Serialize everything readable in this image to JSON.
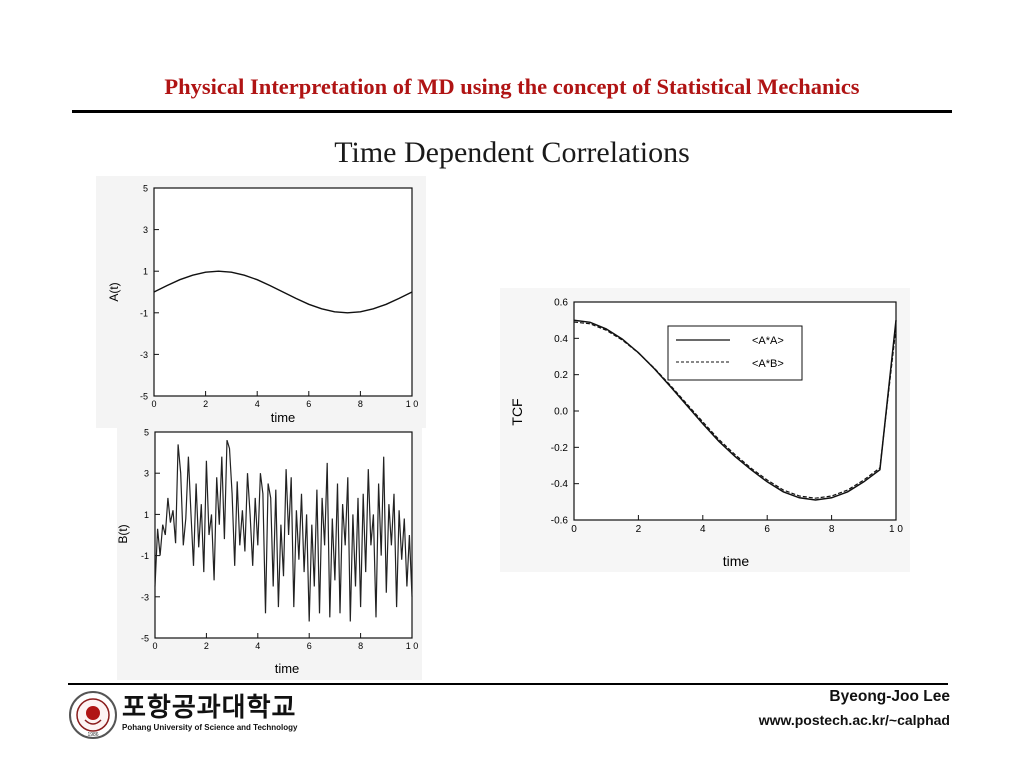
{
  "slide": {
    "title": "Physical Interpretation of MD using the concept of Statistical Mechanics",
    "subtitle": "Time Dependent Correlations"
  },
  "footer": {
    "author": "Byeong-Joo Lee",
    "url": "www.postech.ac.kr/~calphad",
    "university_korean": "포항공과대학교",
    "university_english": "Pohang University of Science and Technology",
    "seal_year": "1986"
  },
  "colors": {
    "title": "#b01414",
    "ink": "#111111"
  },
  "chart_data": [
    {
      "type": "line",
      "xlabel": "time",
      "ylabel": "A(t)",
      "xlim": [
        0,
        10
      ],
      "ylim": [
        -5,
        5
      ],
      "xticks": [
        "0",
        "2",
        "4",
        "6",
        "8",
        "1 0"
      ],
      "yticks": [
        "5",
        "3",
        "1",
        "-1",
        "-3",
        "-5"
      ],
      "series": [
        {
          "x": [
            0,
            0.5,
            1,
            1.5,
            2,
            2.5,
            3,
            3.5,
            4,
            4.5,
            5,
            5.5,
            6,
            6.5,
            7,
            7.5,
            8,
            8.5,
            9,
            9.5,
            10
          ],
          "values": [
            0,
            0.31,
            0.59,
            0.81,
            0.95,
            1.0,
            0.95,
            0.81,
            0.59,
            0.31,
            0,
            -0.31,
            -0.59,
            -0.81,
            -0.95,
            -1.0,
            -0.95,
            -0.81,
            -0.59,
            -0.31,
            0
          ]
        }
      ]
    },
    {
      "type": "line",
      "xlabel": "time",
      "ylabel": "B(t)",
      "xlim": [
        0,
        10
      ],
      "ylim": [
        -5,
        5
      ],
      "xticks": [
        "0",
        "2",
        "4",
        "6",
        "8",
        "1 0"
      ],
      "yticks": [
        "5",
        "3",
        "1",
        "-1",
        "-3",
        "-5"
      ],
      "series": [
        {
          "x": [
            0,
            0.1,
            0.2,
            0.3,
            0.4,
            0.5,
            0.6,
            0.7,
            0.8,
            0.9,
            1.0,
            1.1,
            1.2,
            1.3,
            1.4,
            1.5,
            1.6,
            1.7,
            1.8,
            1.9,
            2.0,
            2.1,
            2.2,
            2.3,
            2.4,
            2.5,
            2.6,
            2.7,
            2.8,
            2.9,
            3.0,
            3.1,
            3.2,
            3.3,
            3.4,
            3.5,
            3.6,
            3.7,
            3.8,
            3.9,
            4.0,
            4.1,
            4.2,
            4.3,
            4.4,
            4.5,
            4.6,
            4.7,
            4.8,
            4.9,
            5.0,
            5.1,
            5.2,
            5.3,
            5.4,
            5.5,
            5.6,
            5.7,
            5.8,
            5.9,
            6.0,
            6.1,
            6.2,
            6.3,
            6.4,
            6.5,
            6.6,
            6.7,
            6.8,
            6.9,
            7.0,
            7.1,
            7.2,
            7.3,
            7.4,
            7.5,
            7.6,
            7.7,
            7.8,
            7.9,
            8.0,
            8.1,
            8.2,
            8.3,
            8.4,
            8.5,
            8.6,
            8.7,
            8.8,
            8.9,
            9.0,
            9.1,
            9.2,
            9.3,
            9.4,
            9.5,
            9.6,
            9.7,
            9.8,
            9.9,
            10.0
          ],
          "values": [
            -2.5,
            0.3,
            -1.0,
            0.5,
            0.0,
            1.8,
            0.6,
            1.2,
            -0.4,
            4.4,
            3.0,
            -0.5,
            0.8,
            3.8,
            1.0,
            -1.5,
            2.5,
            -0.6,
            1.5,
            -1.8,
            3.6,
            0.0,
            1.0,
            -2.2,
            2.8,
            0.5,
            3.8,
            -0.2,
            4.6,
            4.2,
            2.0,
            -1.5,
            2.6,
            -0.5,
            1.2,
            -0.8,
            3.0,
            1.0,
            -1.5,
            1.8,
            -0.5,
            3.0,
            2.0,
            -3.8,
            2.5,
            1.8,
            -2.5,
            2.2,
            -3.5,
            0.5,
            -2.0,
            3.2,
            0.0,
            2.8,
            -3.5,
            1.2,
            -1.2,
            2.0,
            -1.8,
            1.0,
            -4.2,
            0.5,
            -2.5,
            2.2,
            -3.8,
            1.8,
            -0.5,
            3.5,
            -4.0,
            0.8,
            -2.2,
            2.5,
            -3.8,
            1.5,
            -0.5,
            2.8,
            -4.2,
            1.0,
            -2.5,
            1.8,
            -3.5,
            2.0,
            -1.8,
            3.2,
            -0.5,
            1.0,
            -4.0,
            2.5,
            -1.0,
            3.8,
            -2.8,
            1.5,
            -0.5,
            2.0,
            -3.5,
            1.2,
            -1.2,
            0.8,
            -2.5,
            0.0,
            -3.0
          ]
        }
      ]
    },
    {
      "type": "line",
      "xlabel": "time",
      "ylabel": "TCF",
      "xlim": [
        0,
        10
      ],
      "ylim": [
        -0.6,
        0.6
      ],
      "xticks": [
        "0",
        "2",
        "4",
        "6",
        "8",
        "1 0"
      ],
      "yticks": [
        "0.6",
        "0.4",
        "0.2",
        "0.0",
        "-0.2",
        "-0.4",
        "-0.6"
      ],
      "legend_position": "top-right",
      "series": [
        {
          "name": "<A*A>",
          "style": "solid",
          "x": [
            0,
            0.5,
            1,
            1.5,
            2,
            2.5,
            3,
            3.5,
            4,
            4.5,
            5,
            5.5,
            6,
            6.5,
            7,
            7.5,
            8,
            8.5,
            9,
            9.5,
            10
          ],
          "values": [
            0.5,
            0.488,
            0.452,
            0.396,
            0.321,
            0.232,
            0.134,
            0.032,
            -0.07,
            -0.167,
            -0.25,
            -0.323,
            -0.39,
            -0.445,
            -0.478,
            -0.49,
            -0.478,
            -0.445,
            -0.39,
            -0.323,
            0.5
          ]
        },
        {
          "name": "<A*B>",
          "style": "dashed",
          "x": [
            0,
            0.5,
            1,
            1.5,
            2,
            2.5,
            3,
            3.5,
            4,
            4.5,
            5,
            5.5,
            6,
            6.5,
            7,
            7.5,
            8,
            8.5,
            9,
            9.5,
            10
          ],
          "values": [
            0.49,
            0.48,
            0.445,
            0.39,
            0.32,
            0.235,
            0.14,
            0.04,
            -0.06,
            -0.157,
            -0.24,
            -0.315,
            -0.38,
            -0.435,
            -0.468,
            -0.48,
            -0.468,
            -0.435,
            -0.38,
            -0.313,
            0.46
          ]
        }
      ]
    }
  ]
}
